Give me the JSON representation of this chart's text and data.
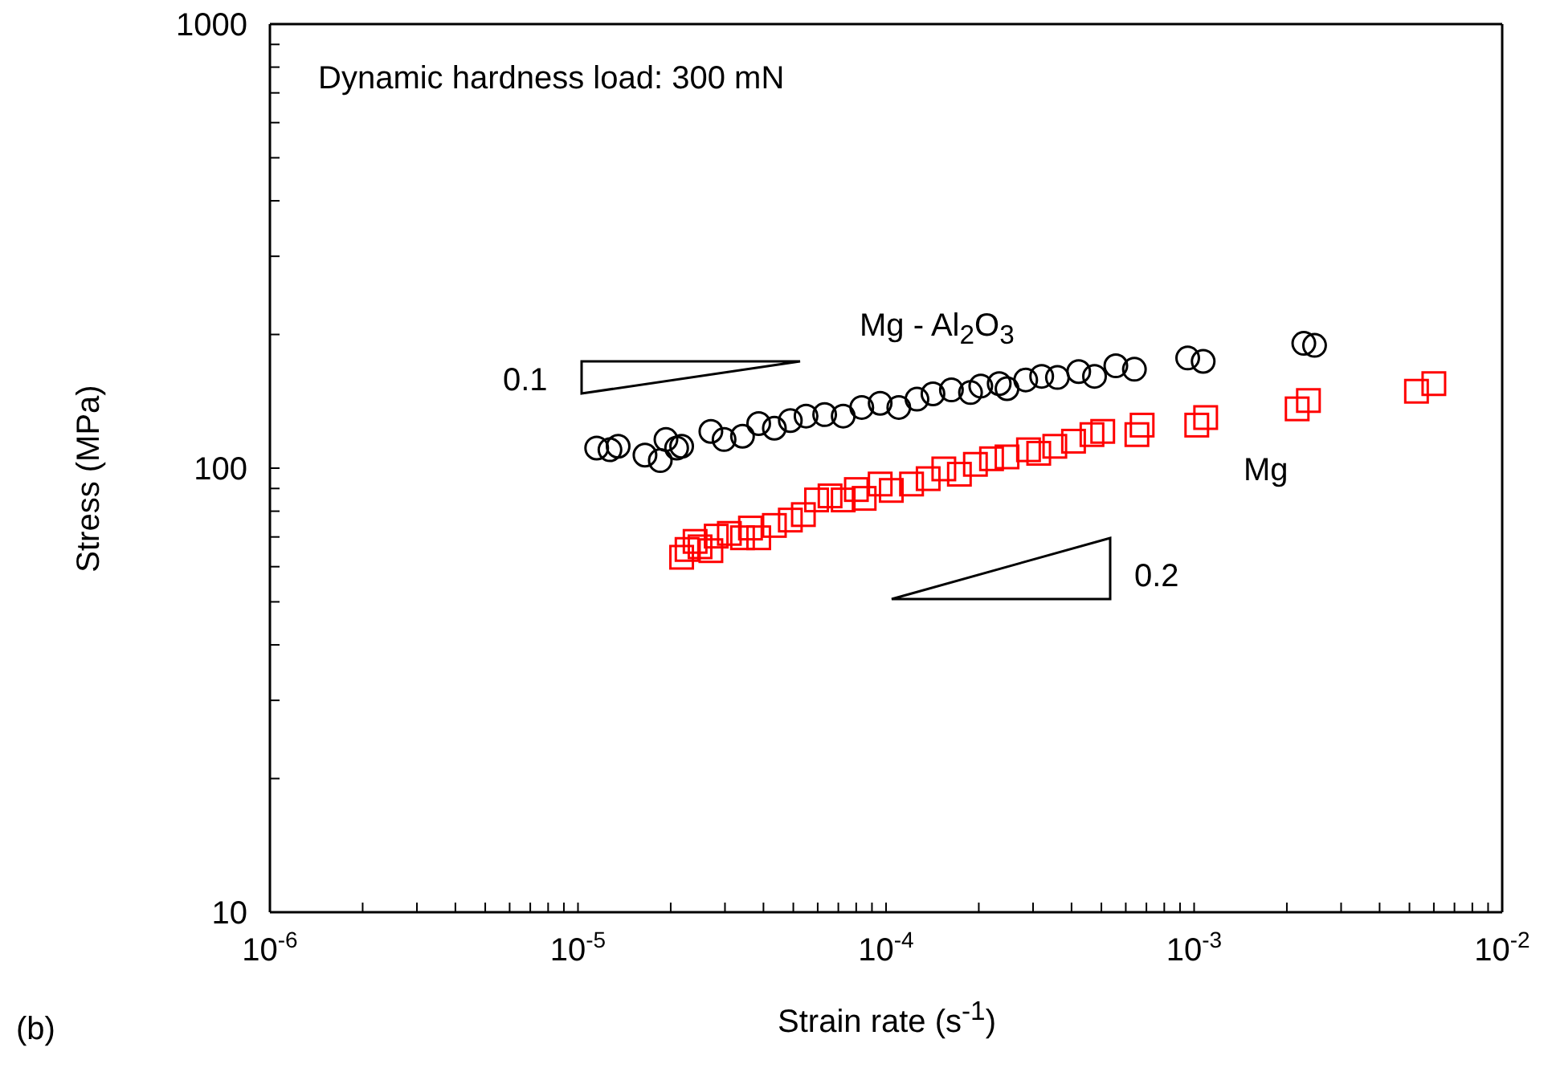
{
  "chart_data": {
    "type": "scatter",
    "title": "Dynamic hardness load: 300 mN",
    "xlabel": "Strain rate (s$^{-1}$)",
    "ylabel": "Stress (MPa)",
    "log": "xy",
    "xlim": [
      1e-06,
      0.01
    ],
    "ylim": [
      10,
      1000
    ],
    "xticks": [
      {
        "value": 1e-06,
        "label": "10$^{-6}$"
      },
      {
        "value": 2e-06,
        "label": null
      },
      {
        "value": 3e-06,
        "label": null
      },
      {
        "value": 4e-06,
        "label": null
      },
      {
        "value": 5e-06,
        "label": null
      },
      {
        "value": 6e-06,
        "label": null
      },
      {
        "value": 7e-06,
        "label": null
      },
      {
        "value": 8e-06,
        "label": null
      },
      {
        "value": 9e-06,
        "label": null
      },
      {
        "value": 1e-05,
        "label": "10$^{-5}$"
      },
      {
        "value": 2e-05,
        "label": null
      },
      {
        "value": 3e-05,
        "label": null
      },
      {
        "value": 4e-05,
        "label": null
      },
      {
        "value": 5e-05,
        "label": null
      },
      {
        "value": 6e-05,
        "label": null
      },
      {
        "value": 7e-05,
        "label": null
      },
      {
        "value": 8e-05,
        "label": null
      },
      {
        "value": 9e-05,
        "label": null
      },
      {
        "value": 0.0001,
        "label": "10$^{-4}$"
      },
      {
        "value": 0.0002,
        "label": null
      },
      {
        "value": 0.0003,
        "label": null
      },
      {
        "value": 0.0004,
        "label": null
      },
      {
        "value": 0.0005,
        "label": null
      },
      {
        "value": 0.0006,
        "label": null
      },
      {
        "value": 0.0007,
        "label": null
      },
      {
        "value": 0.0008,
        "label": null
      },
      {
        "value": 0.0009,
        "label": null
      },
      {
        "value": 0.001,
        "label": "10$^{-3}$"
      },
      {
        "value": 0.002,
        "label": null
      },
      {
        "value": 0.003,
        "label": null
      },
      {
        "value": 0.004,
        "label": null
      },
      {
        "value": 0.005,
        "label": null
      },
      {
        "value": 0.006,
        "label": null
      },
      {
        "value": 0.007,
        "label": null
      },
      {
        "value": 0.008,
        "label": null
      },
      {
        "value": 0.009,
        "label": null
      },
      {
        "value": 0.01,
        "label": "10$^{-2}$"
      }
    ],
    "yticks": [
      10,
      {
        "value": 20,
        "label": null
      },
      {
        "value": 30,
        "label": null
      },
      {
        "value": 40,
        "label": null
      },
      {
        "value": 50,
        "label": null
      },
      {
        "value": 60,
        "label": null
      },
      {
        "value": 70,
        "label": null
      },
      {
        "value": 80,
        "label": null
      },
      {
        "value": 90,
        "label": null
      },
      100,
      {
        "value": 200,
        "label": null
      },
      {
        "value": 300,
        "label": null
      },
      {
        "value": 400,
        "label": null
      },
      {
        "value": 500,
        "label": null
      },
      {
        "value": 600,
        "label": null
      },
      {
        "value": 700,
        "label": null
      },
      {
        "value": 800,
        "label": null
      },
      {
        "value": 900,
        "label": null
      },
      1000
    ],
    "annotations": [
      "0.1",
      "0.2",
      "(b)"
    ],
    "series": [
      {
        "name": "Mg - Al$_{2}$O$_{3}$",
        "color": "#000000",
        "marker": "circle",
        "x": [
          1.15e-05,
          1.27e-05,
          1.35e-05,
          1.65e-05,
          1.85e-05,
          1.93e-05,
          2.09e-05,
          2.17e-05,
          2.7e-05,
          2.98e-05,
          3.42e-05,
          3.86e-05,
          4.34e-05,
          4.89e-05,
          5.5e-05,
          6.32e-05,
          7.26e-05,
          8.34e-05,
          9.57e-05,
          0.00011,
          0.000126,
          0.000142,
          0.000163,
          0.000188,
          0.000203,
          0.000233,
          0.000247,
          0.000284,
          0.00032,
          0.00036,
          0.000422,
          0.000475,
          0.000557,
          0.00064,
          0.000953,
          0.00107,
          0.00227,
          0.00246
        ],
        "values": [
          111,
          110,
          112,
          107,
          104,
          116,
          111,
          112,
          121,
          116,
          118,
          126,
          123,
          128,
          131,
          132,
          131,
          137,
          140,
          137,
          143,
          147,
          150,
          148,
          153,
          155,
          151,
          158,
          161,
          160,
          165,
          161,
          170,
          167,
          177,
          174,
          191,
          189
        ]
      },
      {
        "name": "Mg",
        "color": "#ff0000",
        "marker": "square",
        "x": [
          2.17e-05,
          2.26e-05,
          2.4e-05,
          2.49e-05,
          2.7e-05,
          2.81e-05,
          3.1e-05,
          3.42e-05,
          3.63e-05,
          3.86e-05,
          4.34e-05,
          4.89e-05,
          5.39e-05,
          5.95e-05,
          6.58e-05,
          7.26e-05,
          8.01e-05,
          8.49e-05,
          9.57e-05,
          0.000104,
          0.000121,
          0.000137,
          0.000154,
          0.000173,
          0.000195,
          0.00022,
          0.000247,
          0.00029,
          0.000313,
          0.000353,
          0.000406,
          0.000466,
          0.000505,
          0.000652,
          0.000678,
          0.00102,
          0.00109,
          0.00216,
          0.00235,
          0.00527,
          0.006
        ],
        "values": [
          63,
          65.6,
          68.4,
          66.5,
          65.2,
          70.3,
          71.3,
          69.7,
          73.3,
          69.7,
          74.3,
          76.4,
          78.6,
          84.8,
          86.6,
          84.8,
          89.5,
          85.5,
          92.1,
          89.1,
          92.1,
          94.7,
          99.6,
          96.9,
          102,
          105,
          106,
          110,
          108,
          112,
          115,
          119,
          121,
          119,
          125,
          125,
          130,
          136,
          142,
          149,
          155
        ]
      }
    ]
  }
}
